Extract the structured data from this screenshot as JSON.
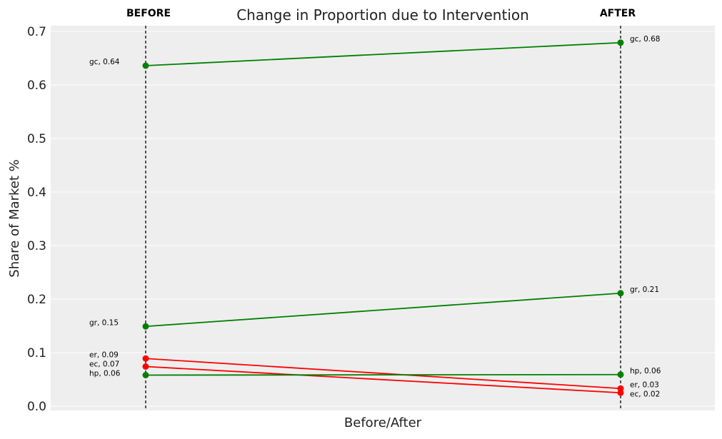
{
  "chart_data": {
    "type": "line",
    "title": "Change in Proportion due to Intervention",
    "xlabel": "Before/After",
    "ylabel": "Share of Market %",
    "ylim": [
      -0.007,
      0.707
    ],
    "yticks": [
      "0.0",
      "0.1",
      "0.2",
      "0.3",
      "0.4",
      "0.5",
      "0.6",
      "0.7"
    ],
    "ytick_values": [
      0,
      0.1,
      0.2,
      0.3,
      0.4,
      0.5,
      0.6,
      0.7
    ],
    "grid": true,
    "markers": {
      "before": "BEFORE",
      "after": "AFTER"
    },
    "series": [
      {
        "name": "gc",
        "before": 0.636,
        "after": 0.679,
        "color": "#008000",
        "before_label": "gc, 0.64",
        "after_label": "gc, 0.68"
      },
      {
        "name": "gr",
        "before": 0.149,
        "after": 0.211,
        "color": "#008000",
        "before_label": "gr, 0.15",
        "after_label": "gr, 0.21"
      },
      {
        "name": "er",
        "before": 0.089,
        "after": 0.033,
        "color": "#ff0000",
        "before_label": "er, 0.09",
        "after_label": "er, 0.03"
      },
      {
        "name": "ec",
        "before": 0.074,
        "after": 0.025,
        "color": "#ff0000",
        "before_label": "ec, 0.07",
        "after_label": "ec, 0.02"
      },
      {
        "name": "hp",
        "before": 0.058,
        "after": 0.059,
        "color": "#008000",
        "before_label": "hp, 0.06",
        "after_label": "hp, 0.06"
      }
    ]
  }
}
